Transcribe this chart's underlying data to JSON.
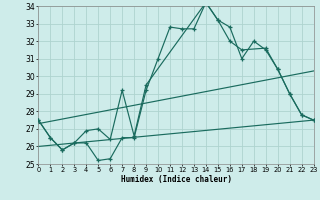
{
  "xlabel": "Humidex (Indice chaleur)",
  "bg_color": "#ceecea",
  "line_color": "#1a6b5e",
  "grid_color": "#aed4cf",
  "xlim": [
    0,
    23
  ],
  "ylim": [
    25,
    34
  ],
  "yticks": [
    25,
    26,
    27,
    28,
    29,
    30,
    31,
    32,
    33,
    34
  ],
  "xtick_labels": [
    "0",
    "1",
    "2",
    "3",
    "4",
    "5",
    "6",
    "7",
    "8",
    "9",
    "10",
    "11",
    "12",
    "13",
    "14",
    "15",
    "16",
    "17",
    "18",
    "19",
    "20",
    "21",
    "22",
    "23"
  ],
  "line1_x": [
    0,
    1,
    2,
    3,
    4,
    5,
    6,
    7,
    8,
    9,
    10,
    11,
    12,
    13,
    14,
    15,
    16,
    17,
    18,
    19,
    20,
    21,
    22,
    23
  ],
  "line1_y": [
    27.5,
    26.5,
    25.8,
    26.2,
    26.2,
    25.2,
    25.3,
    26.5,
    26.5,
    29.2,
    31.0,
    32.8,
    32.7,
    32.7,
    34.2,
    33.2,
    32.8,
    31.0,
    32.0,
    31.5,
    30.4,
    29.0,
    27.8,
    27.5
  ],
  "line2_x": [
    0,
    1,
    2,
    3,
    4,
    5,
    6,
    7,
    8,
    9,
    14,
    15,
    16,
    17,
    19,
    20,
    21,
    22,
    23
  ],
  "line2_y": [
    27.5,
    26.5,
    25.8,
    26.2,
    26.9,
    27.0,
    26.4,
    29.2,
    26.6,
    29.5,
    34.2,
    33.2,
    32.0,
    31.5,
    31.6,
    30.4,
    29.0,
    27.8,
    27.5
  ],
  "line3_x": [
    0,
    23
  ],
  "line3_y": [
    26.0,
    27.5
  ],
  "line4_x": [
    0,
    23
  ],
  "line4_y": [
    27.3,
    30.3
  ]
}
